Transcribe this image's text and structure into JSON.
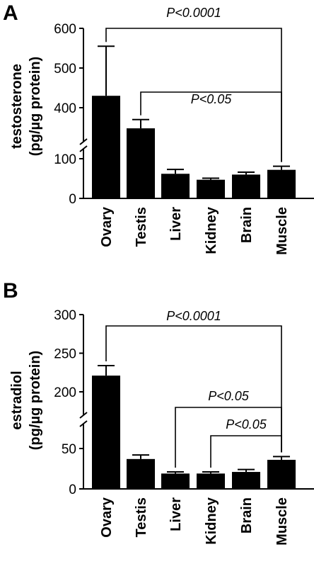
{
  "chart_data": [
    {
      "type": "bar",
      "panel_label": "A",
      "ylabel_line1": "testosterone",
      "ylabel_line2": "(pg/µg protein)",
      "categories": [
        "Ovary",
        "Testis",
        "Liver",
        "Kidney",
        "Brain",
        "Muscle"
      ],
      "values": [
        430,
        348,
        62,
        47,
        60,
        72
      ],
      "errors": [
        125,
        22,
        11,
        4,
        6,
        9
      ],
      "axis_broken": true,
      "lower_ticks": [
        0,
        100
      ],
      "upper_ticks": [
        400,
        500,
        600
      ],
      "comparisons": [
        {
          "from": "Ovary",
          "to": "Muscle",
          "label": "P<0.0001"
        },
        {
          "from": "Testis",
          "to": "Muscle",
          "label": "P<0.05"
        }
      ]
    },
    {
      "type": "bar",
      "panel_label": "B",
      "ylabel_line1": "estradiol",
      "ylabel_line2": "(pg/µg protein)",
      "categories": [
        "Ovary",
        "Testis",
        "Liver",
        "Kidney",
        "Brain",
        "Muscle"
      ],
      "values": [
        221,
        37,
        19,
        19,
        21,
        36
      ],
      "errors": [
        13,
        5,
        2,
        2,
        3,
        4
      ],
      "axis_broken": true,
      "lower_ticks": [
        0,
        50
      ],
      "upper_ticks": [
        200,
        250,
        300
      ],
      "comparisons": [
        {
          "from": "Ovary",
          "to": "Muscle",
          "label": "P<0.0001"
        },
        {
          "from": "Liver",
          "to": "Muscle",
          "label": "P<0.05"
        },
        {
          "from": "Kidney",
          "to": "Muscle",
          "label": "P<0.05"
        }
      ]
    }
  ]
}
